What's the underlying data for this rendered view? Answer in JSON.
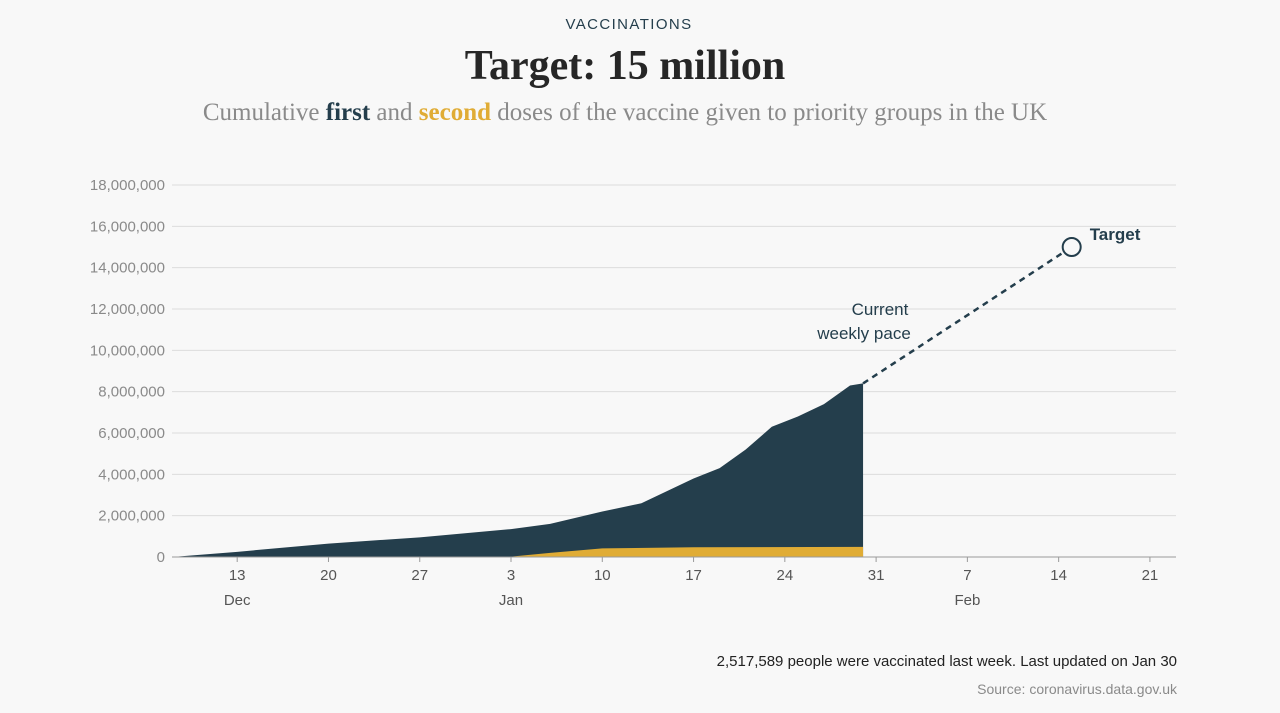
{
  "kicker": "VACCINATIONS",
  "title": "Target: 15 million",
  "subtitle": {
    "part1": "Cumulative",
    "first": "first",
    "part2": "and",
    "second": "second",
    "part3": "doses of the vaccine given to priority groups in the UK"
  },
  "colors": {
    "first_dose": "#243e4c",
    "second_dose": "#e0ac35",
    "grid": "#dcdcdc",
    "axis_text": "#8a8a8a",
    "background": "#f8f8f8"
  },
  "annotations": {
    "pace_line1": "Current",
    "pace_line2": "weekly pace",
    "target_label": "Target"
  },
  "footnote": "2,517,589 people were vaccinated last week. Last updated on Jan 30",
  "source": {
    "label": "Source:",
    "value": "coronavirus.data.gov.uk"
  },
  "chart_data": {
    "type": "area",
    "title": "Target: 15 million",
    "xlabel": "",
    "ylabel": "",
    "x_ticks": [
      {
        "date": "2020-12-13",
        "label": "13"
      },
      {
        "date": "2020-12-20",
        "label": "20"
      },
      {
        "date": "2020-12-27",
        "label": "27"
      },
      {
        "date": "2021-01-03",
        "label": "3"
      },
      {
        "date": "2021-01-10",
        "label": "10"
      },
      {
        "date": "2021-01-17",
        "label": "17"
      },
      {
        "date": "2021-01-24",
        "label": "24"
      },
      {
        "date": "2021-01-31",
        "label": "31"
      },
      {
        "date": "2021-02-07",
        "label": "7"
      },
      {
        "date": "2021-02-14",
        "label": "14"
      },
      {
        "date": "2021-02-21",
        "label": "21"
      }
    ],
    "month_labels": [
      {
        "date": "2020-12-13",
        "label": "Dec"
      },
      {
        "date": "2021-01-03",
        "label": "Jan"
      },
      {
        "date": "2021-02-07",
        "label": "Feb"
      }
    ],
    "xlim": [
      "2020-12-08",
      "2021-02-23"
    ],
    "ylim": [
      0,
      18000000
    ],
    "y_ticks": [
      {
        "value": 0,
        "label": "0"
      },
      {
        "value": 2000000,
        "label": "2,000,000"
      },
      {
        "value": 4000000,
        "label": "4,000,000"
      },
      {
        "value": 6000000,
        "label": "6,000,000"
      },
      {
        "value": 8000000,
        "label": "8,000,000"
      },
      {
        "value": 10000000,
        "label": "10,000,000"
      },
      {
        "value": 12000000,
        "label": "12,000,000"
      },
      {
        "value": 14000000,
        "label": "14,000,000"
      },
      {
        "value": 16000000,
        "label": "16,000,000"
      },
      {
        "value": 18000000,
        "label": "18,000,000"
      }
    ],
    "grid": true,
    "series": [
      {
        "name": "first",
        "color": "#243e4c",
        "points": [
          {
            "date": "2020-12-08",
            "value": 0
          },
          {
            "date": "2020-12-13",
            "value": 250000
          },
          {
            "date": "2020-12-20",
            "value": 650000
          },
          {
            "date": "2020-12-27",
            "value": 950000
          },
          {
            "date": "2021-01-03",
            "value": 1350000
          },
          {
            "date": "2021-01-06",
            "value": 1600000
          },
          {
            "date": "2021-01-10",
            "value": 2200000
          },
          {
            "date": "2021-01-13",
            "value": 2600000
          },
          {
            "date": "2021-01-15",
            "value": 3200000
          },
          {
            "date": "2021-01-17",
            "value": 3800000
          },
          {
            "date": "2021-01-19",
            "value": 4300000
          },
          {
            "date": "2021-01-21",
            "value": 5200000
          },
          {
            "date": "2021-01-23",
            "value": 6300000
          },
          {
            "date": "2021-01-25",
            "value": 6800000
          },
          {
            "date": "2021-01-27",
            "value": 7400000
          },
          {
            "date": "2021-01-29",
            "value": 8300000
          },
          {
            "date": "2021-01-30",
            "value": 8400000
          }
        ]
      },
      {
        "name": "second",
        "color": "#e0ac35",
        "points": [
          {
            "date": "2020-12-08",
            "value": 0
          },
          {
            "date": "2021-01-03",
            "value": 20000
          },
          {
            "date": "2021-01-06",
            "value": 200000
          },
          {
            "date": "2021-01-10",
            "value": 420000
          },
          {
            "date": "2021-01-17",
            "value": 470000
          },
          {
            "date": "2021-01-30",
            "value": 490000
          }
        ]
      }
    ],
    "projection": {
      "label": "Current weekly pace",
      "from": {
        "date": "2021-01-30",
        "value": 8400000
      },
      "to": {
        "date": "2021-02-15",
        "value": 15000000
      }
    },
    "target": {
      "label": "Target",
      "date": "2021-02-15",
      "value": 15000000
    }
  }
}
